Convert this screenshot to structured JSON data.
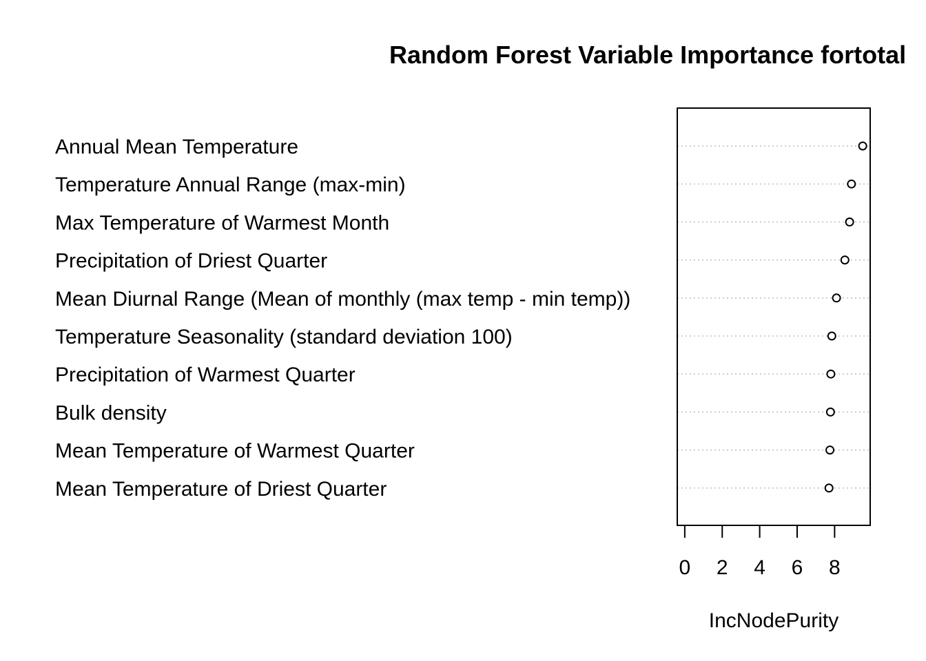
{
  "chart_data": {
    "type": "scatter",
    "title": "Random Forest Variable Importance fortotal",
    "xlabel": "IncNodePurity",
    "ylabel": "",
    "xlim": [
      -0.4,
      9.9
    ],
    "x_ticks": [
      "0",
      "2",
      "4",
      "6",
      "8"
    ],
    "x_tick_values": [
      0,
      2,
      4,
      6,
      8
    ],
    "grid": "dotted horizontal guide lines per variable",
    "categories": [
      "Annual Mean Temperature",
      "Temperature Annual Range (max-min)",
      "Max Temperature of Warmest Month",
      "Precipitation of Driest Quarter",
      "Mean Diurnal Range (Mean of monthly (max temp - min temp))",
      "Temperature Seasonality (standard deviation  100)",
      "Precipitation of Warmest Quarter",
      "Bulk density",
      "Mean Temperature of Warmest Quarter",
      "Mean Temperature of Driest Quarter"
    ],
    "values": [
      9.5,
      8.9,
      8.8,
      8.55,
      8.1,
      7.85,
      7.8,
      7.78,
      7.75,
      7.7
    ],
    "colors": {
      "points": "#000000",
      "guides": "#bebebe",
      "frame": "#000000"
    }
  }
}
